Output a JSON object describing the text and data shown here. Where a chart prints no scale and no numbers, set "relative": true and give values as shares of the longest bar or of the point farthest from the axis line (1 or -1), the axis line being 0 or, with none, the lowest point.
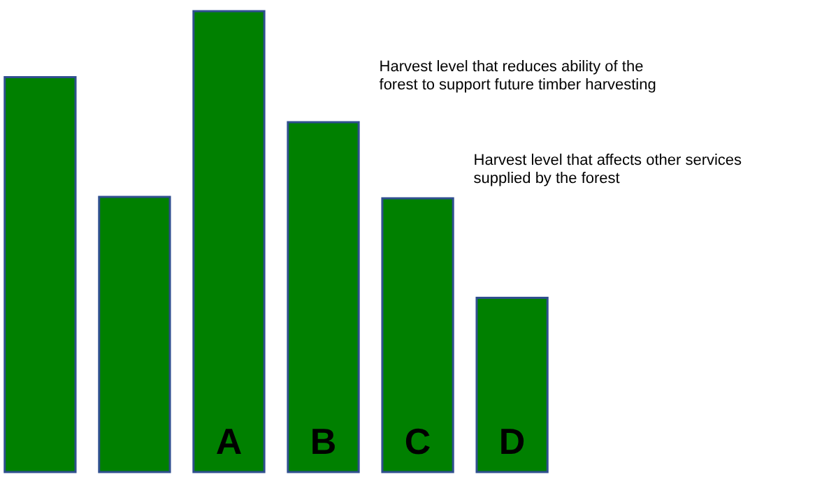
{
  "chart_data": {
    "type": "bar",
    "relative": true,
    "categories": [
      null,
      null,
      "A",
      "B",
      "C",
      "D"
    ],
    "values": [
      0.857,
      0.597,
      1,
      0.759,
      0.594,
      0.378
    ],
    "color": "#008000",
    "annotations": [
      "Harvest level that reduces ability of the forest to support future timber harvesting",
      "Harvest level that affects other services supplied by the forest"
    ]
  }
}
